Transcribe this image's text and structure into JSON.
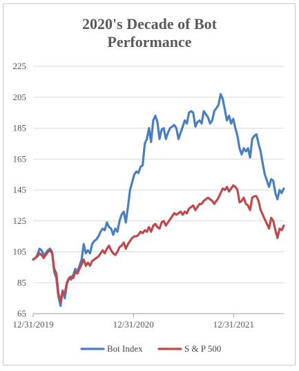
{
  "chart_data": {
    "type": "line",
    "title_line1": "2020's Decade of Bot",
    "title_line2": "Performance",
    "xlabel": "",
    "ylabel": "",
    "ylim": [
      65,
      225
    ],
    "yticks": [
      65,
      85,
      105,
      125,
      145,
      165,
      185,
      205,
      225
    ],
    "xticks": [
      {
        "label": "12/31/2019",
        "t": 0
      },
      {
        "label": "12/31/2020",
        "t": 52
      },
      {
        "label": "12/31/2021",
        "t": 104
      }
    ],
    "t_max": 130,
    "grid": "horizontal",
    "legend_position": "bottom",
    "series": [
      {
        "name": "Bot Index",
        "color": "#4a7fbf",
        "values": [
          100,
          101,
          103,
          107,
          106,
          103,
          104,
          106,
          107,
          105,
          92,
          88,
          76,
          70,
          80,
          75,
          84,
          88,
          87,
          90,
          94,
          92,
          96,
          100,
          110,
          104,
          106,
          104,
          110,
          112,
          113,
          115,
          118,
          120,
          119,
          124,
          121,
          120,
          116,
          120,
          118,
          125,
          129,
          131,
          124,
          134,
          145,
          150,
          155,
          157,
          156,
          160,
          161,
          175,
          178,
          185,
          176,
          190,
          193,
          189,
          178,
          184,
          185,
          178,
          182,
          185,
          186,
          187,
          185,
          178,
          182,
          186,
          190,
          188,
          195,
          196,
          195,
          186,
          189,
          190,
          188,
          196,
          194,
          192,
          188,
          190,
          196,
          198,
          200,
          207,
          204,
          197,
          190,
          193,
          188,
          191,
          185,
          180,
          172,
          168,
          172,
          170,
          172,
          166,
          178,
          180,
          181,
          175,
          170,
          162,
          155,
          151,
          147,
          152,
          151,
          143,
          139,
          145,
          143,
          146
        ]
      },
      {
        "name": "S & P 500",
        "color": "#c0484a",
        "values": [
          100,
          101,
          102,
          104,
          103,
          101,
          103,
          105,
          106,
          104,
          94,
          91,
          78,
          73,
          79,
          78,
          85,
          88,
          89,
          88,
          92,
          91,
          94,
          97,
          100,
          96,
          98,
          96,
          99,
          100,
          101,
          102,
          104,
          106,
          104,
          107,
          109,
          106,
          104,
          103,
          105,
          108,
          109,
          111,
          107,
          110,
          112,
          114,
          115,
          115,
          116,
          118,
          117,
          119,
          118,
          121,
          118,
          122,
          123,
          121,
          120,
          124,
          125,
          122,
          124,
          126,
          128,
          130,
          129,
          130,
          131,
          129,
          131,
          130,
          133,
          134,
          135,
          132,
          134,
          136,
          136,
          138,
          139,
          140,
          139,
          138,
          136,
          138,
          140,
          143,
          146,
          145,
          147,
          144,
          146,
          148,
          147,
          145,
          137,
          138,
          140,
          136,
          135,
          132,
          140,
          141,
          141,
          138,
          132,
          129,
          126,
          123,
          120,
          127,
          125,
          119,
          114,
          120,
          119,
          122
        ]
      }
    ]
  }
}
